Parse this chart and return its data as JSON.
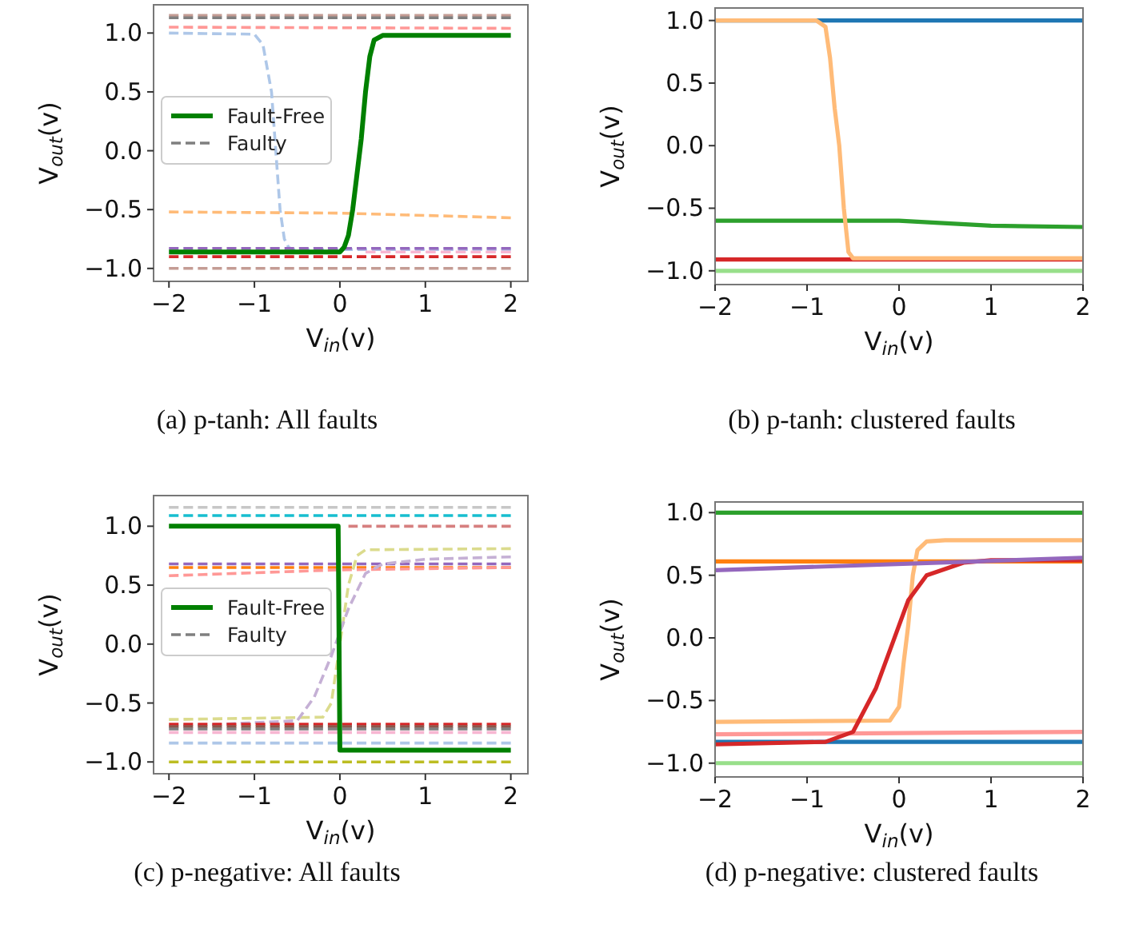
{
  "chart_data": [
    {
      "type": "line",
      "xlabel": "V$_{in}$(v)",
      "ylabel": "V$_{out}$(v)",
      "annotations": [
        "(a) p-tanh: All faults"
      ],
      "xlim": [
        -2.18,
        2.2
      ],
      "ylim": [
        -1.11,
        1.24
      ],
      "xticks": [
        -2,
        -1,
        0,
        1,
        2
      ],
      "yticks": [
        {
          "value": -1,
          "label": "−1.0"
        },
        {
          "value": -0.5,
          "label": "−0.5"
        },
        {
          "value": 0,
          "label": "0.0"
        },
        {
          "value": 0.5,
          "label": "0.5"
        },
        {
          "value": 1,
          "label": "1.0"
        }
      ],
      "grid": false,
      "legend": "center left",
      "line_style": "dashed",
      "series": [
        {
          "color": "#c49c94",
          "x": [
            -2,
            2
          ],
          "values": [
            1.15,
            1.15
          ]
        },
        {
          "name": "Faulty",
          "color": "#7f7f7f",
          "x": [
            -2,
            2
          ],
          "values": [
            1.13,
            1.13
          ]
        },
        {
          "color": "#ff9896",
          "x": [
            -2,
            2
          ],
          "values": [
            1.05,
            1.04
          ]
        },
        {
          "color": "#aec7e8",
          "x": [
            -2,
            -1,
            -0.9,
            -0.8,
            -0.75,
            -0.7,
            -0.65,
            -0.6,
            -0.55,
            2
          ],
          "values": [
            1.0,
            0.99,
            0.9,
            0.5,
            0.0,
            -0.5,
            -0.75,
            -0.82,
            -0.84,
            -0.84
          ]
        },
        {
          "color": "#ffbb78",
          "x": [
            -2,
            0,
            1,
            2
          ],
          "values": [
            -0.52,
            -0.53,
            -0.55,
            -0.57
          ]
        },
        {
          "color": "#9467bd",
          "x": [
            -2,
            2
          ],
          "values": [
            -0.83,
            -0.83
          ]
        },
        {
          "color": "#f7b6d2",
          "x": [
            0.3,
            2
          ],
          "values": [
            -0.86,
            -0.86
          ]
        },
        {
          "color": "#d62728",
          "x": [
            -2,
            2
          ],
          "values": [
            -0.9,
            -0.9
          ]
        },
        {
          "color": "#c49c94",
          "x": [
            -2,
            2
          ],
          "values": [
            -1.0,
            -1.0
          ]
        },
        {
          "name": "Fault-Free",
          "color": "#008000",
          "line_style": "solid",
          "x": [
            -2,
            0,
            0.05,
            0.1,
            0.15,
            0.2,
            0.25,
            0.3,
            0.35,
            0.4,
            0.5,
            0.6,
            2
          ],
          "values": [
            -0.86,
            -0.86,
            -0.82,
            -0.72,
            -0.5,
            -0.2,
            0.1,
            0.5,
            0.8,
            0.94,
            0.98,
            0.98,
            0.98
          ]
        }
      ]
    },
    {
      "type": "line",
      "xlabel": "V$_{in}$(v)",
      "ylabel": "V$_{out}$(v)",
      "annotations": [
        "(b) p-tanh: clustered faults"
      ],
      "xlim": [
        -2,
        2
      ],
      "ylim": [
        -1.11,
        1.1
      ],
      "xticks": [
        -2,
        -1,
        0,
        1,
        2
      ],
      "yticks": [
        {
          "value": -1,
          "label": "−1.0"
        },
        {
          "value": -0.5,
          "label": "−0.5"
        },
        {
          "value": 0,
          "label": "0.0"
        },
        {
          "value": 0.5,
          "label": "0.5"
        },
        {
          "value": 1,
          "label": "1.0"
        }
      ],
      "grid": false,
      "line_style": "solid",
      "series": [
        {
          "color": "#1f77b4",
          "x": [
            -2,
            2
          ],
          "values": [
            1.0,
            1.0
          ]
        },
        {
          "color": "#2ca02c",
          "x": [
            -2,
            0,
            1,
            2
          ],
          "values": [
            -0.6,
            -0.6,
            -0.64,
            -0.65
          ]
        },
        {
          "color": "#d62728",
          "x": [
            -2,
            2
          ],
          "values": [
            -0.91,
            -0.91
          ]
        },
        {
          "color": "#98df8a",
          "x": [
            -2,
            2
          ],
          "values": [
            -1.0,
            -1.0
          ]
        },
        {
          "color": "#ffbb78",
          "x": [
            -2,
            -0.9,
            -0.8,
            -0.75,
            -0.7,
            -0.65,
            -0.6,
            -0.55,
            -0.5,
            2
          ],
          "values": [
            1.0,
            1.0,
            0.95,
            0.7,
            0.3,
            0.0,
            -0.5,
            -0.85,
            -0.9,
            -0.9
          ]
        }
      ]
    },
    {
      "type": "line",
      "xlabel": "V$_{in}$(v)",
      "ylabel": "V$_{out}$(v)",
      "annotations": [
        "(c) p-negative: All faults"
      ],
      "xlim": [
        -2.18,
        2.2
      ],
      "ylim": [
        -1.1,
        1.26
      ],
      "xticks": [
        -2,
        -1,
        0,
        1,
        2
      ],
      "yticks": [
        {
          "value": -1,
          "label": "−1.0"
        },
        {
          "value": -0.5,
          "label": "−0.5"
        },
        {
          "value": 0,
          "label": "0.0"
        },
        {
          "value": 0.5,
          "label": "0.5"
        },
        {
          "value": 1,
          "label": "1.0"
        }
      ],
      "grid": false,
      "legend": "center left",
      "line_style": "dashed",
      "series": [
        {
          "color": "#c7c7c7",
          "x": [
            -2,
            2
          ],
          "values": [
            1.16,
            1.16
          ]
        },
        {
          "color": "#17becf",
          "x": [
            -2,
            2
          ],
          "values": [
            1.09,
            1.09
          ]
        },
        {
          "color": "#d67f7f",
          "x": [
            0.1,
            2
          ],
          "values": [
            1.0,
            1.0
          ]
        },
        {
          "color": "#9467bd",
          "x": [
            -2,
            2
          ],
          "values": [
            0.68,
            0.68
          ]
        },
        {
          "color": "#ff7f0e",
          "x": [
            -2,
            2
          ],
          "values": [
            0.65,
            0.65
          ]
        },
        {
          "color": "#ff9896",
          "x": [
            -2,
            0,
            2
          ],
          "values": [
            0.58,
            0.63,
            0.65
          ]
        },
        {
          "color": "#dbdb8d",
          "x": [
            -2,
            -0.2,
            -0.1,
            0,
            0.1,
            0.2,
            0.3,
            2
          ],
          "values": [
            -0.64,
            -0.62,
            -0.5,
            0.0,
            0.5,
            0.75,
            0.8,
            0.81
          ]
        },
        {
          "color": "#c5b0d5",
          "x": [
            -2,
            -0.5,
            -0.3,
            -0.1,
            0.1,
            0.3,
            0.5,
            1,
            2
          ],
          "values": [
            -0.7,
            -0.65,
            -0.45,
            -0.1,
            0.3,
            0.6,
            0.68,
            0.72,
            0.74
          ]
        },
        {
          "color": "#d62728",
          "x": [
            -2,
            2
          ],
          "values": [
            -0.68,
            -0.68
          ]
        },
        {
          "color": "#8c564b",
          "x": [
            -2,
            2
          ],
          "values": [
            -0.7,
            -0.7
          ]
        },
        {
          "name": "Faulty",
          "color": "#7f7f7f",
          "x": [
            -2,
            2
          ],
          "values": [
            -0.72,
            -0.72
          ]
        },
        {
          "color": "#f7b6d2",
          "x": [
            -2,
            2
          ],
          "values": [
            -0.75,
            -0.75
          ]
        },
        {
          "color": "#aec7e8",
          "x": [
            -2,
            2
          ],
          "values": [
            -0.84,
            -0.84
          ]
        },
        {
          "color": "#bcbd22",
          "x": [
            -2,
            2
          ],
          "values": [
            -1.0,
            -1.0
          ]
        },
        {
          "name": "Fault-Free",
          "color": "#008000",
          "line_style": "solid",
          "x": [
            -2,
            -0.02,
            0,
            2
          ],
          "values": [
            1.0,
            1.0,
            -0.9,
            -0.9
          ]
        }
      ]
    },
    {
      "type": "line",
      "xlabel": "V$_{in}$(v)",
      "ylabel": "V$_{out}$(v)",
      "annotations": [
        "(d) p-negative: clustered faults"
      ],
      "xlim": [
        -2,
        2
      ],
      "ylim": [
        -1.11,
        1.085
      ],
      "xticks": [
        -2,
        -1,
        0,
        1,
        2
      ],
      "yticks": [
        {
          "value": -1,
          "label": "−1.0"
        },
        {
          "value": -0.5,
          "label": "−0.5"
        },
        {
          "value": 0,
          "label": "0.0"
        },
        {
          "value": 0.5,
          "label": "0.5"
        },
        {
          "value": 1,
          "label": "1.0"
        }
      ],
      "grid": false,
      "line_style": "solid",
      "series": [
        {
          "color": "#2ca02c",
          "x": [
            -2,
            2
          ],
          "values": [
            1.0,
            1.0
          ]
        },
        {
          "color": "#ff7f0e",
          "x": [
            -2,
            2
          ],
          "values": [
            0.61,
            0.61
          ]
        },
        {
          "color": "#ff9896",
          "x": [
            -2,
            2
          ],
          "values": [
            -0.77,
            -0.75
          ]
        },
        {
          "color": "#1f77b4",
          "x": [
            -2,
            2
          ],
          "values": [
            -0.83,
            -0.83
          ]
        },
        {
          "color": "#98df8a",
          "x": [
            -2,
            2
          ],
          "values": [
            -1.0,
            -1.0
          ]
        },
        {
          "color": "#ffbb78",
          "x": [
            -2,
            -0.1,
            0,
            0.05,
            0.1,
            0.15,
            0.2,
            0.3,
            0.5,
            2
          ],
          "values": [
            -0.67,
            -0.66,
            -0.55,
            -0.2,
            0.1,
            0.5,
            0.7,
            0.77,
            0.78,
            0.78
          ]
        },
        {
          "color": "#d62728",
          "x": [
            -2,
            -0.8,
            -0.5,
            -0.25,
            -0.05,
            0.1,
            0.3,
            0.7,
            1,
            2
          ],
          "values": [
            -0.85,
            -0.83,
            -0.75,
            -0.4,
            0.0,
            0.3,
            0.5,
            0.6,
            0.62,
            0.62
          ]
        },
        {
          "color": "#9467bd",
          "x": [
            -2,
            2
          ],
          "values": [
            0.54,
            0.64
          ]
        }
      ]
    }
  ]
}
